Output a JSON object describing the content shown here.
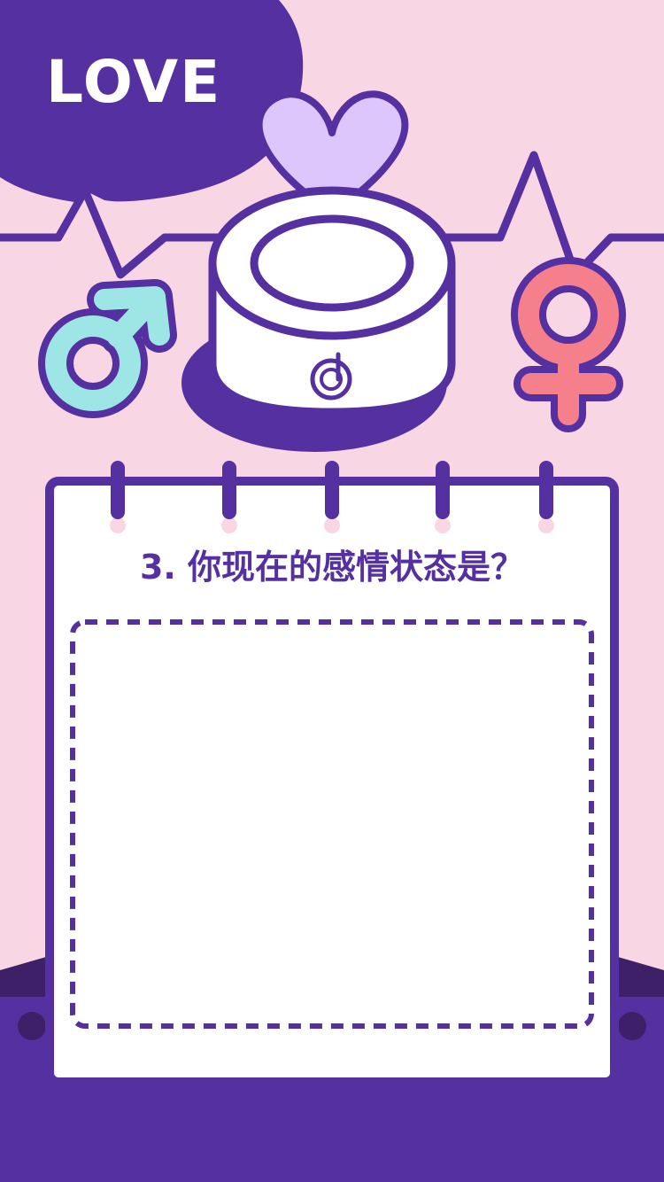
{
  "banner": {
    "label": "LOVE"
  },
  "card": {
    "question": "3. 你现在的感情状态是？"
  },
  "colors": {
    "background": "#f9d6e4",
    "purple": "#5430a0",
    "dark_purple": "#3d2068",
    "lavender": "#dcc6fb",
    "male_symbol": "#9ee6e6",
    "female_symbol": "#f5808c",
    "white": "#ffffff"
  },
  "icons": [
    "male-symbol-icon",
    "female-symbol-icon",
    "heart-icon",
    "music-note-logo-icon"
  ]
}
